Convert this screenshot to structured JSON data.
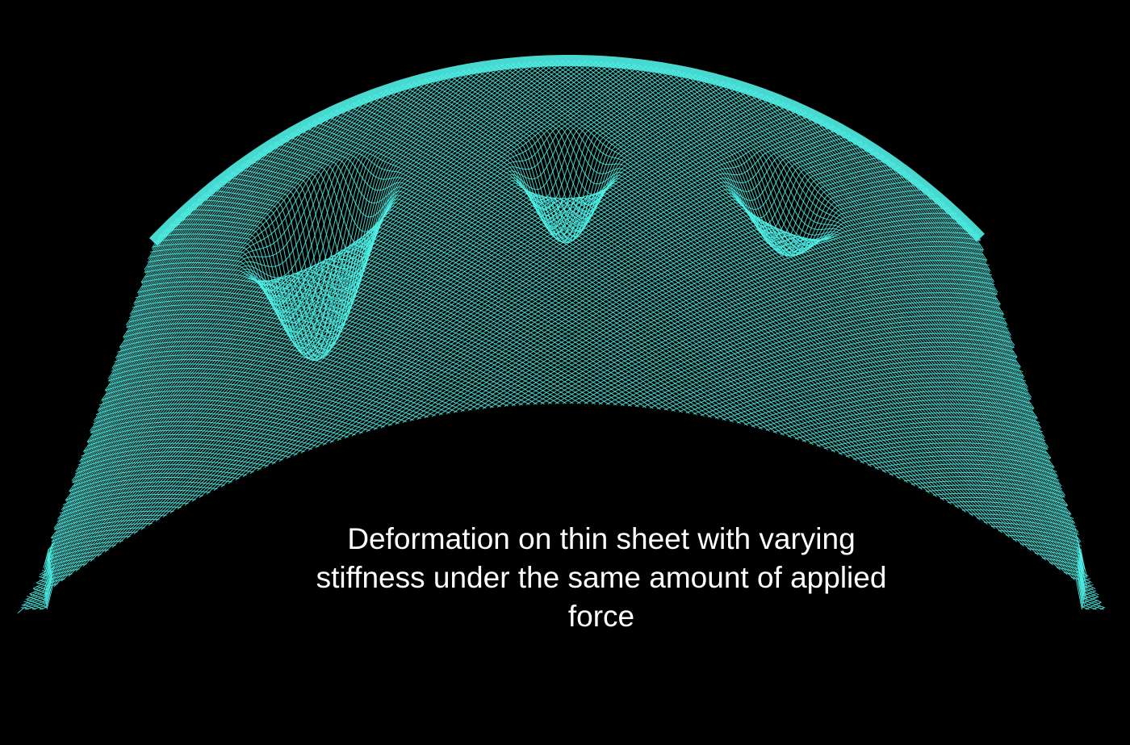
{
  "caption": {
    "line1": "Deformation on thin sheet with varying",
    "line2": "stiffness under the same amount of applied",
    "line3": "force"
  },
  "colors": {
    "background": "#000000",
    "mesh": "#4ff0e6",
    "caption_text": "#ffffff"
  },
  "figure": {
    "surface": "curved thin sheet wireframe mesh",
    "dents": [
      {
        "name": "left-dent",
        "relative_depth": 1.0
      },
      {
        "name": "middle-dent",
        "relative_depth": 0.55
      },
      {
        "name": "right-dent",
        "relative_depth": 0.4
      }
    ]
  }
}
